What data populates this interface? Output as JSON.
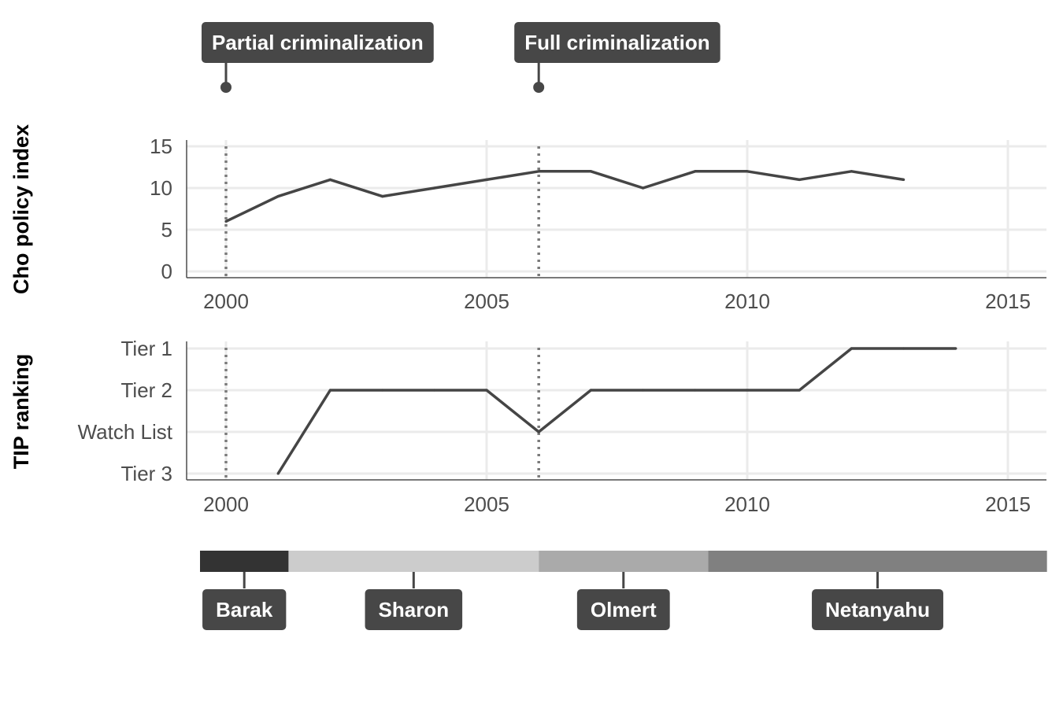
{
  "chart_data": [
    {
      "type": "line",
      "ylabel": "Cho policy index",
      "xlabel": "",
      "xlim": [
        1998.5,
        2015.5
      ],
      "ylim": [
        0,
        15
      ],
      "x_ticks": [
        "2000",
        "2005",
        "2010",
        "2015"
      ],
      "y_ticks": [
        "0",
        "5",
        "10",
        "15"
      ],
      "grid": true,
      "series": [
        {
          "x": [
            2000,
            2001,
            2002,
            2003,
            2004,
            2005,
            2006,
            2007,
            2008,
            2009,
            2010,
            2011,
            2012,
            2013
          ],
          "values": [
            6,
            9,
            11,
            9,
            10,
            11,
            12,
            12,
            10,
            12,
            12,
            11,
            12,
            11
          ]
        }
      ],
      "reference_lines": [
        2000,
        2006
      ]
    },
    {
      "type": "line",
      "ylabel": "TIP ranking",
      "xlabel": "",
      "xlim": [
        1998.5,
        2015.5
      ],
      "x_ticks": [
        "2000",
        "2005",
        "2010",
        "2015"
      ],
      "y_categories": [
        "Tier 3",
        "Watch List",
        "Tier 2",
        "Tier 1"
      ],
      "grid": true,
      "series": [
        {
          "x": [
            2001,
            2002,
            2003,
            2004,
            2005,
            2006,
            2007,
            2008,
            2009,
            2010,
            2011,
            2012,
            2013,
            2014
          ],
          "values": [
            "Tier 3",
            "Tier 2",
            "Tier 2",
            "Tier 2",
            "Tier 2",
            "Watch List",
            "Tier 2",
            "Tier 2",
            "Tier 2",
            "Tier 2",
            "Tier 2",
            "Tier 1",
            "Tier 1",
            "Tier 1"
          ]
        }
      ],
      "reference_lines": [
        2000,
        2006
      ]
    }
  ],
  "events": [
    {
      "label": "Partial criminalization",
      "year": 2000
    },
    {
      "label": "Full criminalization",
      "year": 2006
    }
  ],
  "leaders": [
    {
      "name": "Barak",
      "start": 1999.5,
      "end": 2001.2,
      "color": "#333333"
    },
    {
      "name": "Sharon",
      "start": 2001.2,
      "end": 2006.0,
      "color": "#cccccc"
    },
    {
      "name": "Olmert",
      "start": 2006.0,
      "end": 2009.25,
      "color": "#aaaaaa"
    },
    {
      "name": "Netanyahu",
      "start": 2009.25,
      "end": 2015.75,
      "color": "#808080"
    }
  ],
  "colors": {
    "line": "#454545",
    "grid": "#ebebeb",
    "axis": "#4d4d4d",
    "ref_line": "#7a7a7a",
    "label_box": "#474747"
  }
}
